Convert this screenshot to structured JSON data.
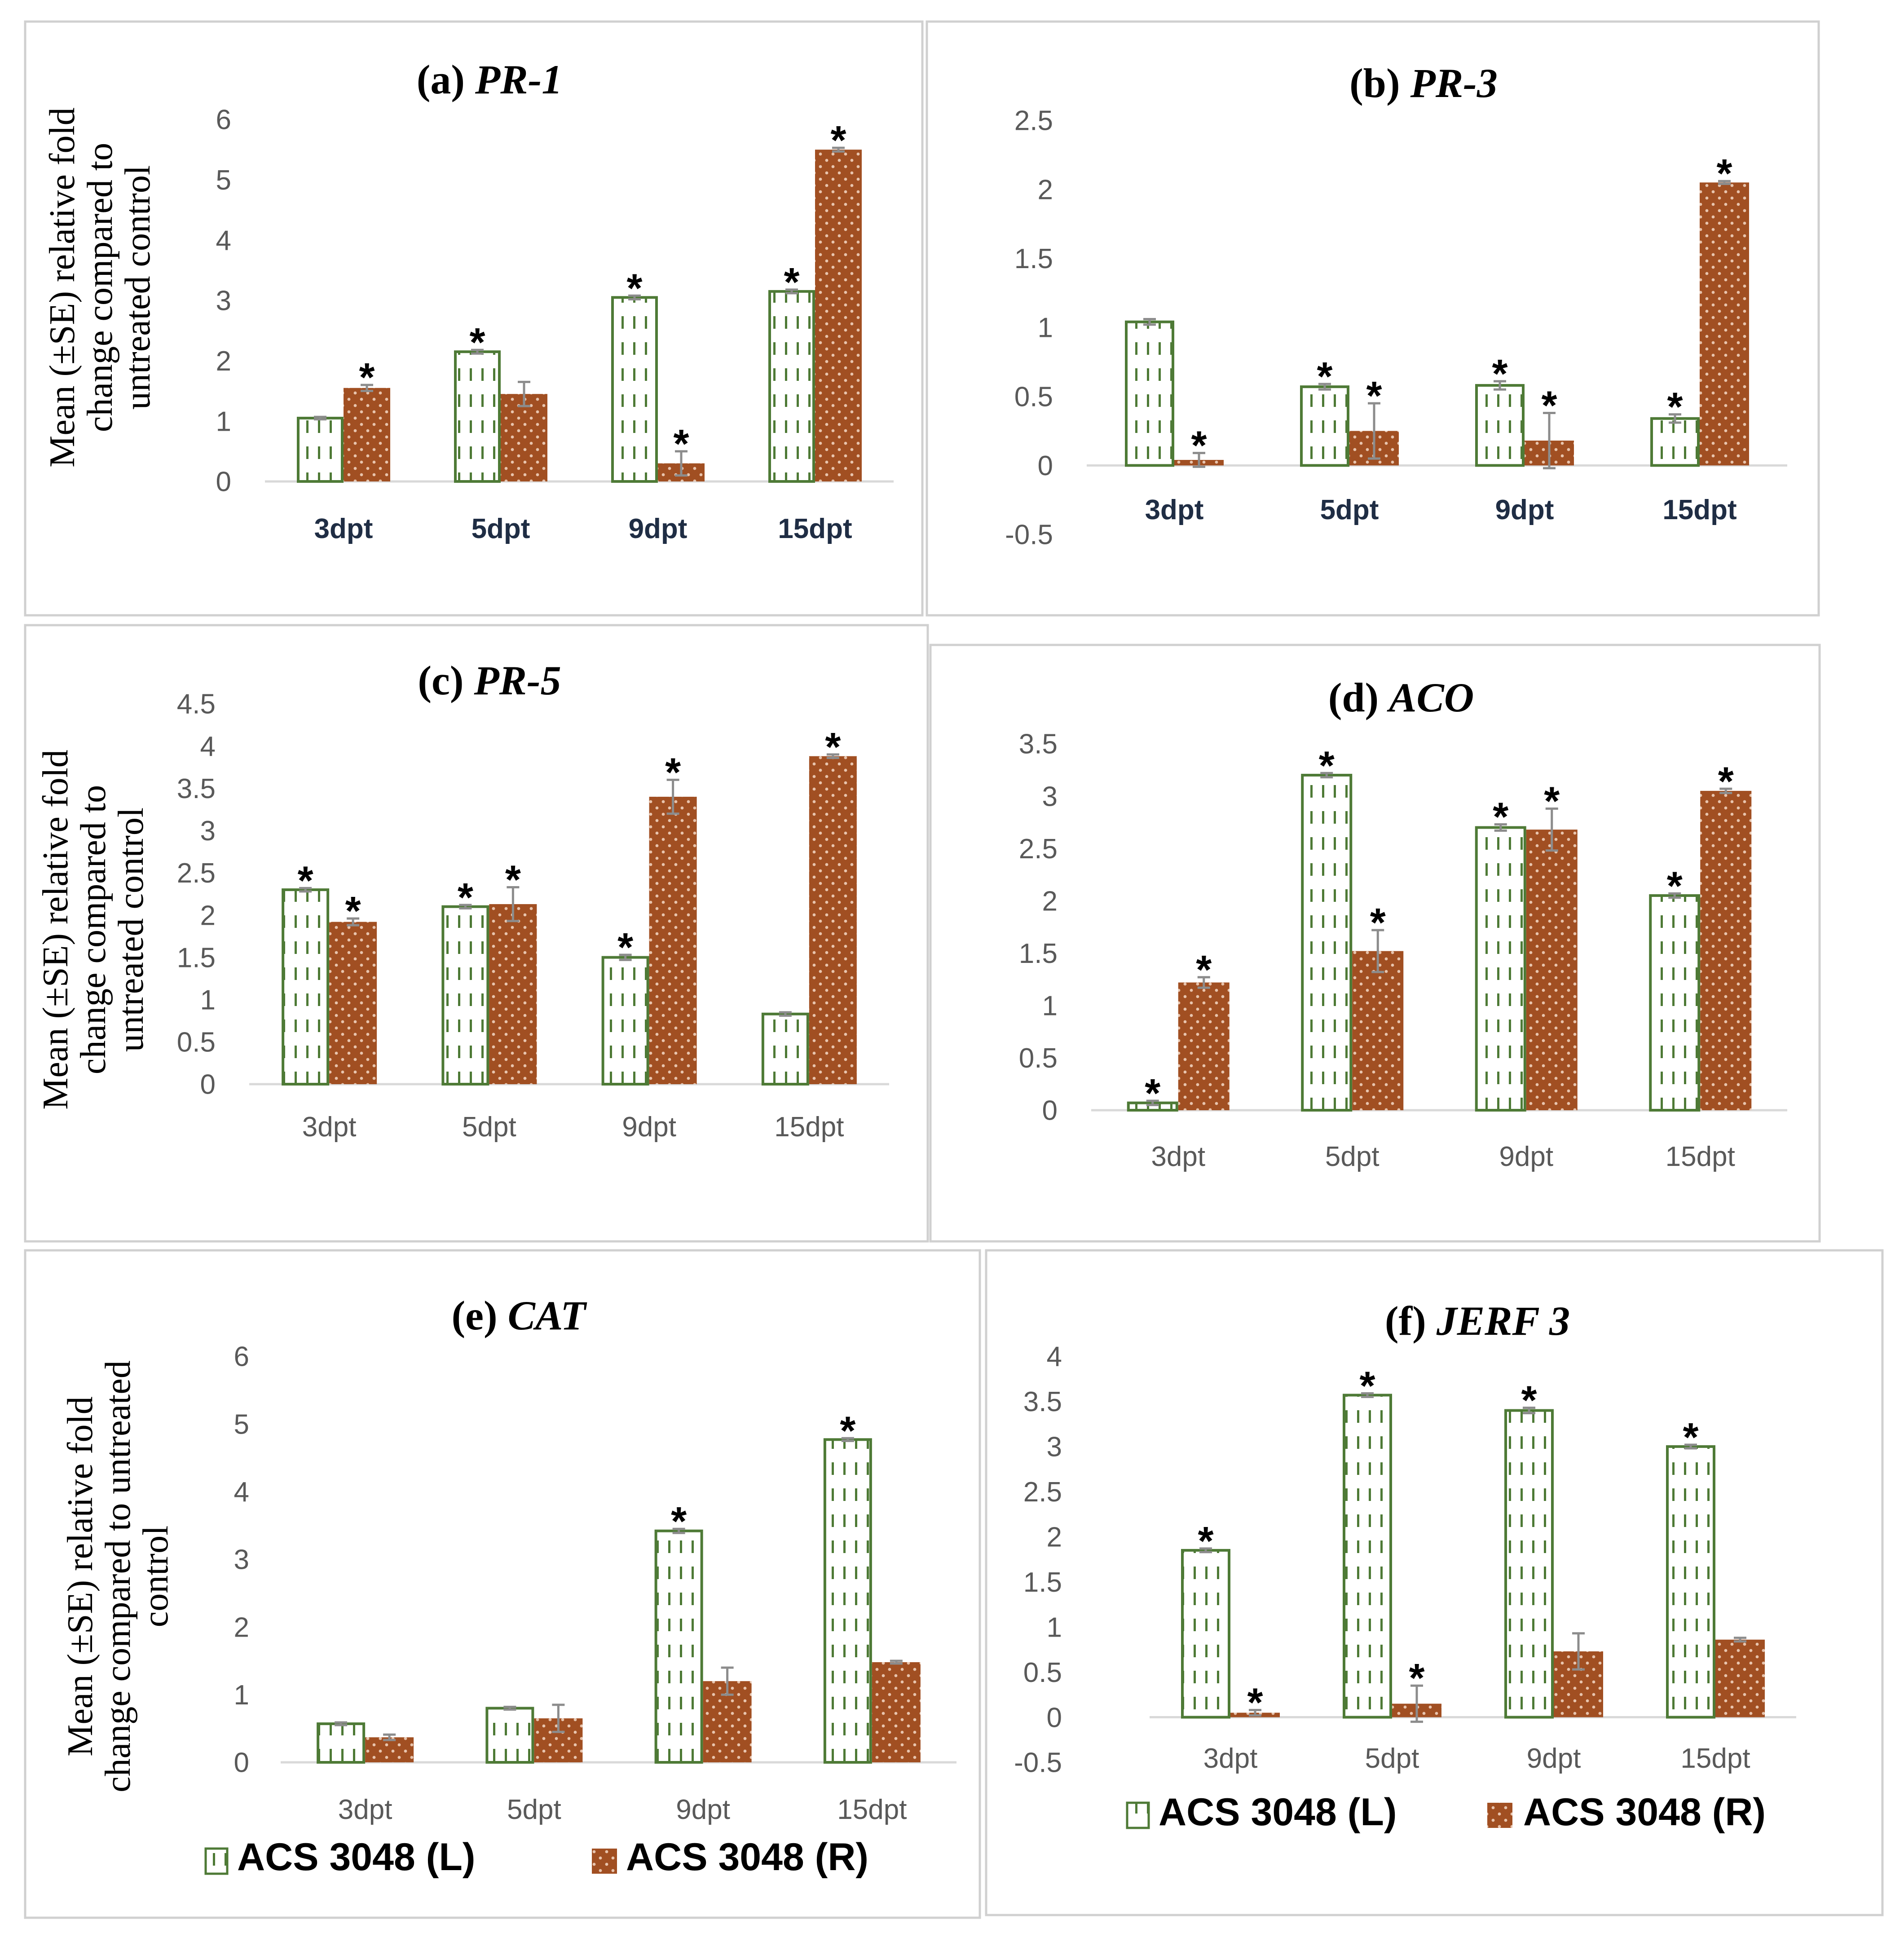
{
  "colors": {
    "series_L_stroke": "#4e7a36",
    "series_L_fill": "#ffffff",
    "series_R_fill": "#a14f22",
    "series_R_dot": "#e8c4ad",
    "axis": "#d9d9d9",
    "frame": "#d0d0d0",
    "tick_text": "#595959",
    "error_bar": "#8c8c8c",
    "bold_category": "#1f2d44"
  },
  "legend": {
    "series_L": "ACS 3048 (L)",
    "series_R": "ACS 3048 (R)"
  },
  "chart_data": [
    {
      "type": "bar",
      "panel": "a",
      "title_prefix": "(a)",
      "title_gene": "PR-1",
      "ylabel_lines": [
        "Mean (±SE) relative fold",
        "change compared to",
        "untreated control"
      ],
      "categories": [
        "3dpt",
        "5dpt",
        "9dpt",
        "15dpt"
      ],
      "yticks": [
        "6",
        "5",
        "4",
        "3",
        "2",
        "1",
        "0"
      ],
      "ylim": [
        0,
        6
      ],
      "series": [
        {
          "name": "ACS 3048 (L)",
          "values": [
            1.05,
            2.15,
            3.05,
            3.15
          ],
          "errors": [
            0.02,
            0.03,
            0.03,
            0.03
          ],
          "significant": [
            false,
            true,
            true,
            true
          ]
        },
        {
          "name": "ACS 3048 (R)",
          "values": [
            1.55,
            1.45,
            0.3,
            5.5
          ],
          "errors": [
            0.05,
            0.2,
            0.2,
            0.03
          ],
          "significant": [
            true,
            false,
            true,
            true
          ]
        }
      ]
    },
    {
      "type": "bar",
      "panel": "b",
      "title_prefix": "(b)",
      "title_gene": "PR-3",
      "ylabel_lines": [],
      "categories": [
        "3dpt",
        "5dpt",
        "9dpt",
        "15dpt"
      ],
      "yticks": [
        "2.5",
        "2",
        "1.5",
        "1",
        "0.5",
        "0",
        "-0.5"
      ],
      "ylim": [
        -0.5,
        2.5
      ],
      "series": [
        {
          "name": "ACS 3048 (L)",
          "values": [
            1.04,
            0.57,
            0.58,
            0.34
          ],
          "errors": [
            0.02,
            0.02,
            0.03,
            0.03
          ],
          "significant": [
            false,
            true,
            true,
            true
          ]
        },
        {
          "name": "ACS 3048 (R)",
          "values": [
            0.04,
            0.25,
            0.18,
            2.05
          ],
          "errors": [
            0.05,
            0.2,
            0.2,
            0.01
          ],
          "significant": [
            true,
            true,
            true,
            true
          ]
        }
      ]
    },
    {
      "type": "bar",
      "panel": "c",
      "title_prefix": "(c)",
      "title_gene": "PR-5",
      "ylabel_lines": [
        "Mean (±SE) relative fold",
        "change compared to",
        "untreated control"
      ],
      "categories": [
        "3dpt",
        "5dpt",
        "9dpt",
        "15dpt"
      ],
      "yticks": [
        "4.5",
        "4",
        "3.5",
        "3",
        "2.5",
        "2",
        "1.5",
        "1",
        "0.5",
        "0"
      ],
      "ylim": [
        0,
        4.5
      ],
      "series": [
        {
          "name": "ACS 3048 (L)",
          "values": [
            2.3,
            2.1,
            1.5,
            0.83
          ],
          "errors": [
            0.02,
            0.02,
            0.03,
            0.02
          ],
          "significant": [
            true,
            true,
            true,
            false
          ]
        },
        {
          "name": "ACS 3048 (R)",
          "values": [
            1.92,
            2.13,
            3.4,
            3.88
          ],
          "errors": [
            0.04,
            0.2,
            0.2,
            0.02
          ],
          "significant": [
            true,
            true,
            true,
            true
          ]
        }
      ]
    },
    {
      "type": "bar",
      "panel": "d",
      "title_prefix": "(d)",
      "title_gene": "ACO",
      "ylabel_lines": [],
      "categories": [
        "3dpt",
        "5dpt",
        "9dpt",
        "15dpt"
      ],
      "yticks": [
        "3.5",
        "3",
        "2.5",
        "2",
        "1.5",
        "1",
        "0.5",
        "0"
      ],
      "ylim": [
        0,
        3.5
      ],
      "series": [
        {
          "name": "ACS 3048 (L)",
          "values": [
            0.07,
            3.2,
            2.7,
            2.05
          ],
          "errors": [
            0.02,
            0.02,
            0.03,
            0.02
          ],
          "significant": [
            true,
            true,
            true,
            true
          ]
        },
        {
          "name": "ACS 3048 (R)",
          "values": [
            1.22,
            1.52,
            2.68,
            3.05
          ],
          "errors": [
            0.05,
            0.2,
            0.2,
            0.02
          ],
          "significant": [
            true,
            true,
            true,
            true
          ]
        }
      ]
    },
    {
      "type": "bar",
      "panel": "e",
      "title_prefix": "(e)",
      "title_gene": "CAT",
      "ylabel_lines": [
        "Mean (±SE) relative fold",
        "change compared to untreated",
        "control"
      ],
      "categories": [
        "3dpt",
        "5dpt",
        "9dpt",
        "15dpt"
      ],
      "yticks": [
        "6",
        "5",
        "4",
        "3",
        "2",
        "1",
        "0"
      ],
      "ylim": [
        0,
        6
      ],
      "series": [
        {
          "name": "ACS 3048 (L)",
          "values": [
            0.57,
            0.8,
            3.42,
            4.77
          ],
          "errors": [
            0.02,
            0.02,
            0.03,
            0.02
          ],
          "significant": [
            false,
            false,
            true,
            true
          ]
        },
        {
          "name": "ACS 3048 (R)",
          "values": [
            0.37,
            0.65,
            1.2,
            1.48
          ],
          "errors": [
            0.04,
            0.2,
            0.2,
            0.02
          ],
          "significant": [
            false,
            false,
            false,
            false
          ]
        }
      ]
    },
    {
      "type": "bar",
      "panel": "f",
      "title_prefix": "(f)",
      "title_gene": "JERF 3",
      "ylabel_lines": [],
      "categories": [
        "3dpt",
        "5dpt",
        "9dpt",
        "15dpt"
      ],
      "yticks": [
        "4",
        "3.5",
        "3",
        "2.5",
        "2",
        "1.5",
        "1",
        "0.5",
        "0",
        "-0.5"
      ],
      "ylim": [
        -0.5,
        4
      ],
      "series": [
        {
          "name": "ACS 3048 (L)",
          "values": [
            1.85,
            3.57,
            3.4,
            3.0
          ],
          "errors": [
            0.02,
            0.02,
            0.03,
            0.02
          ],
          "significant": [
            true,
            true,
            true,
            true
          ]
        },
        {
          "name": "ACS 3048 (R)",
          "values": [
            0.05,
            0.15,
            0.73,
            0.86
          ],
          "errors": [
            0.03,
            0.2,
            0.2,
            0.02
          ],
          "significant": [
            true,
            true,
            false,
            false
          ]
        }
      ]
    }
  ]
}
